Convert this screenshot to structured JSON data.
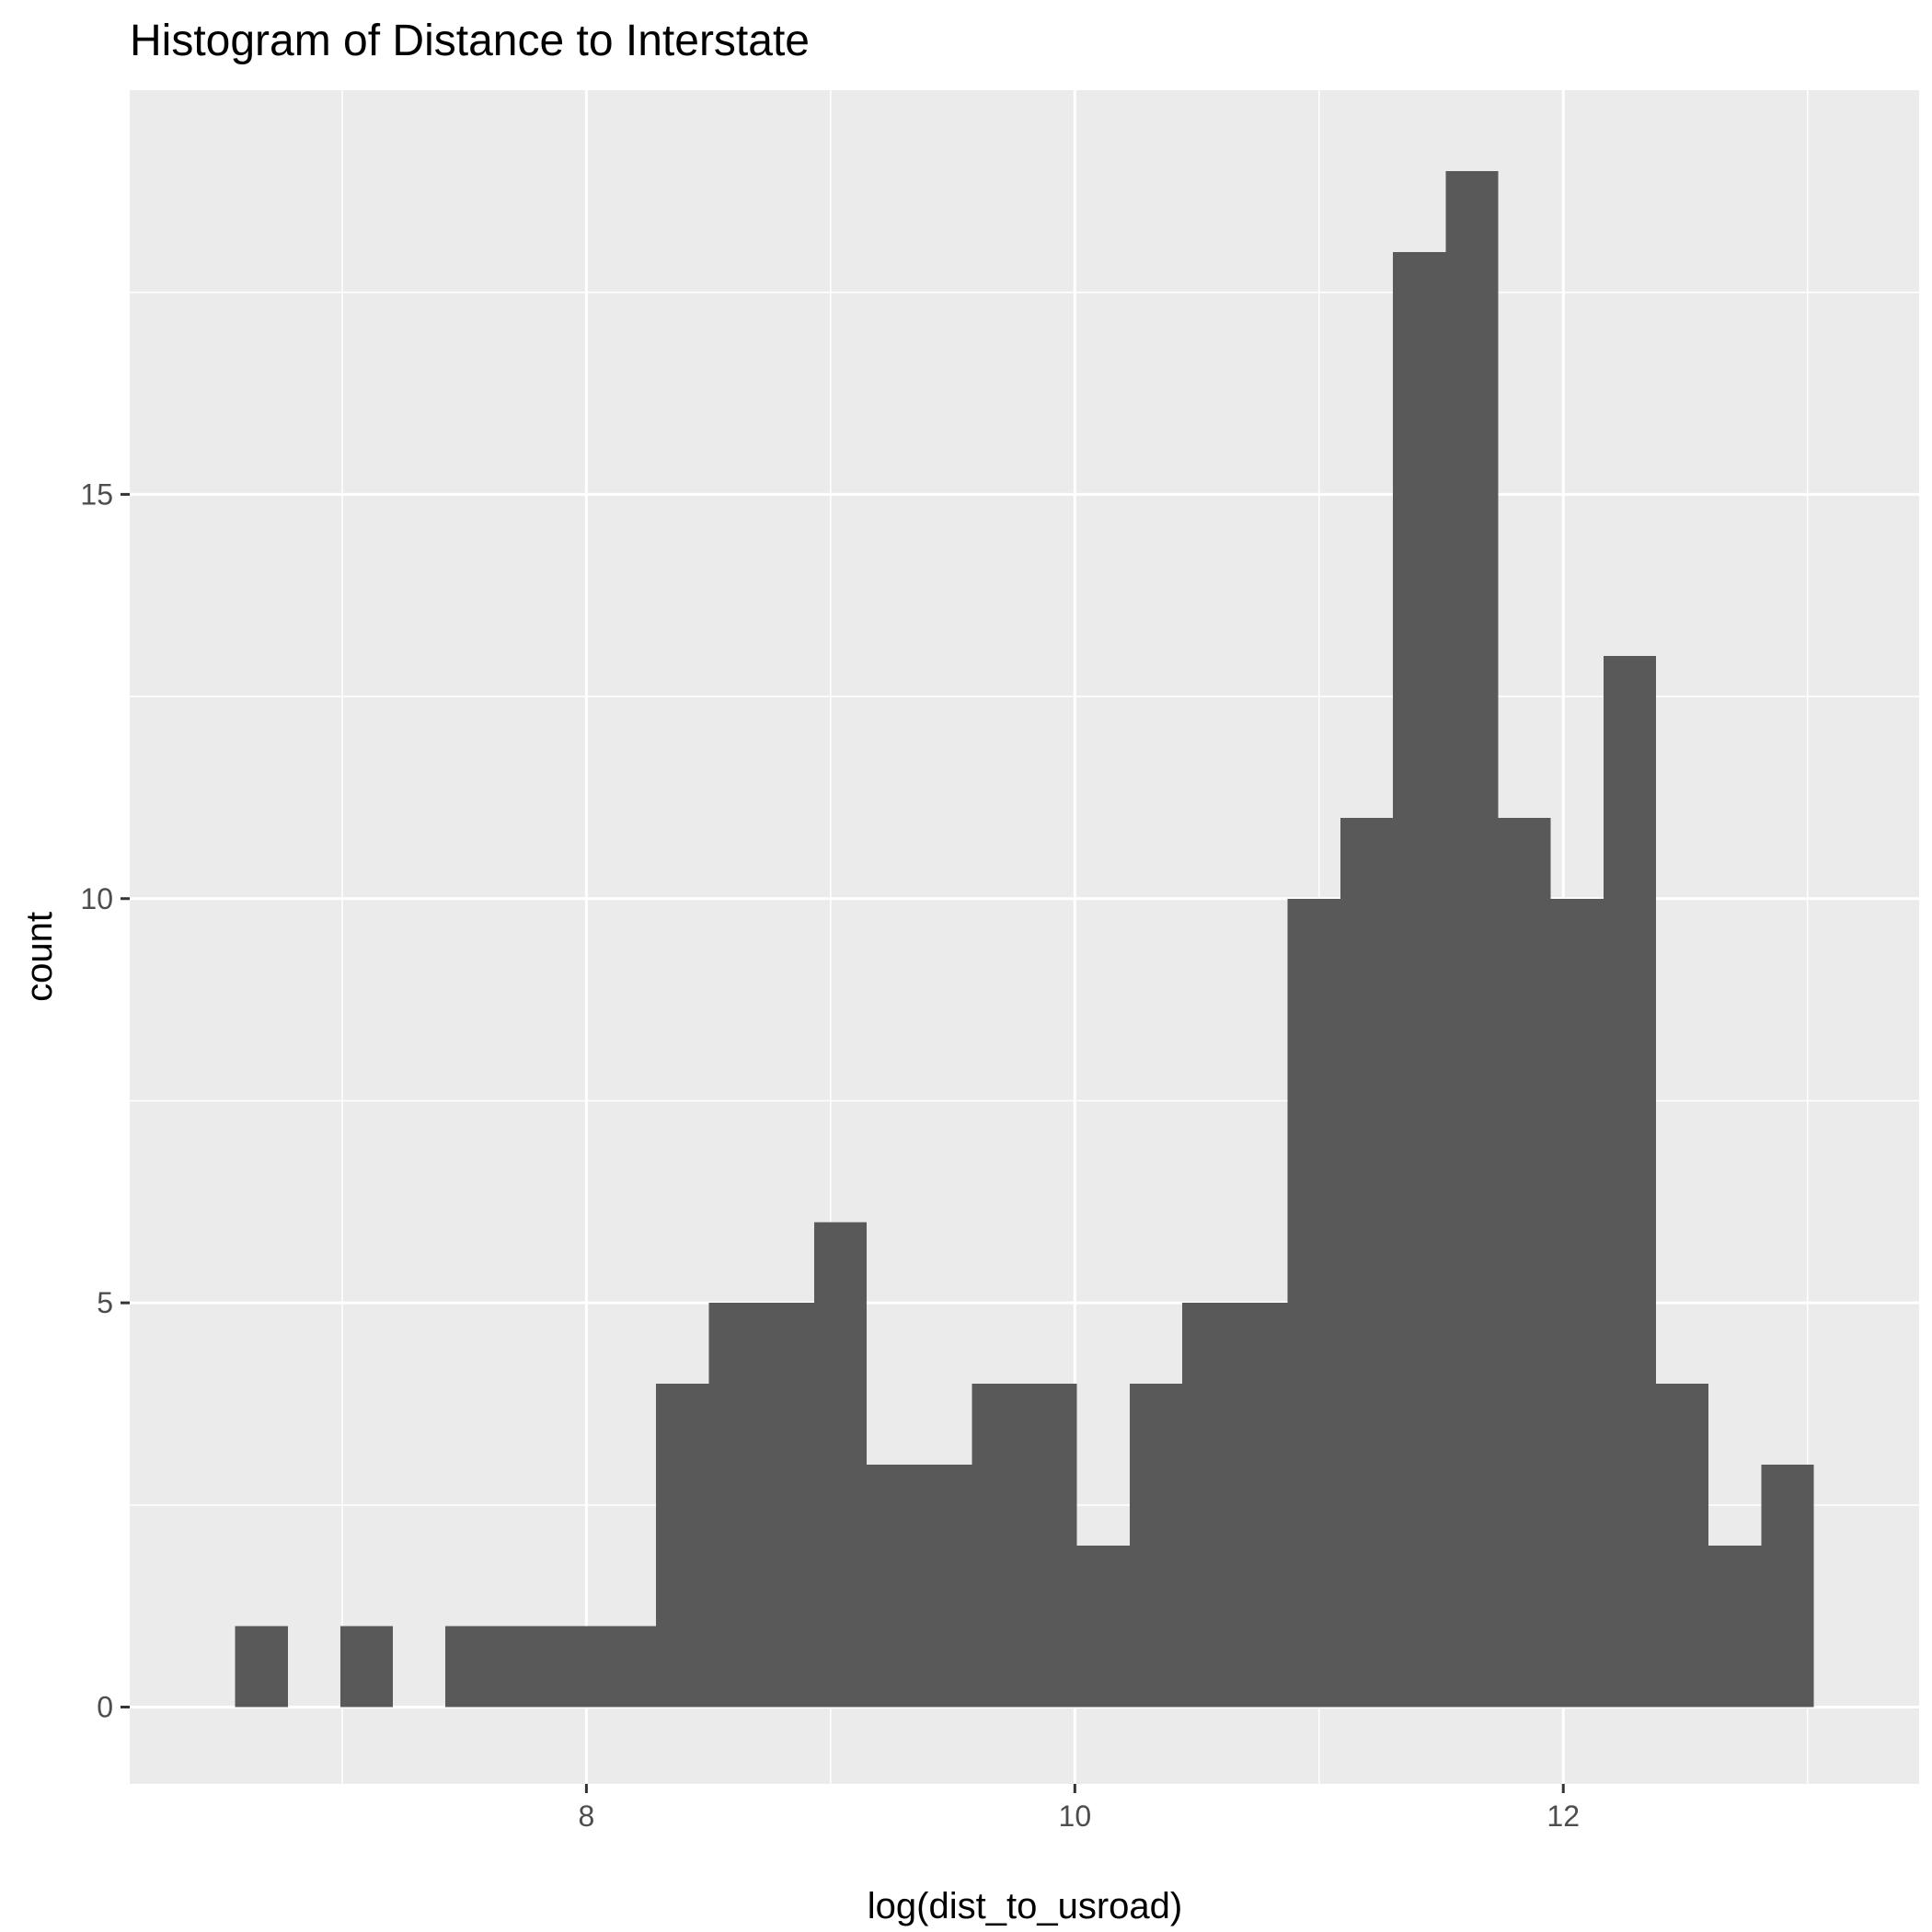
{
  "chart_data": {
    "type": "bar",
    "title": "Histogram of Distance to Interstate",
    "xlabel": "log(dist_to_usroad)",
    "ylabel": "count",
    "bin_width": 0.2155,
    "bins": [
      {
        "x0": 6.561,
        "x1": 6.777,
        "count": 1
      },
      {
        "x0": 6.777,
        "x1": 6.992,
        "count": 0
      },
      {
        "x0": 6.992,
        "x1": 7.208,
        "count": 1
      },
      {
        "x0": 7.208,
        "x1": 7.423,
        "count": 0
      },
      {
        "x0": 7.423,
        "x1": 7.639,
        "count": 1
      },
      {
        "x0": 7.639,
        "x1": 7.854,
        "count": 1
      },
      {
        "x0": 7.854,
        "x1": 8.07,
        "count": 1
      },
      {
        "x0": 8.07,
        "x1": 8.285,
        "count": 1
      },
      {
        "x0": 8.285,
        "x1": 8.501,
        "count": 4
      },
      {
        "x0": 8.501,
        "x1": 8.716,
        "count": 5
      },
      {
        "x0": 8.716,
        "x1": 8.932,
        "count": 5
      },
      {
        "x0": 8.932,
        "x1": 9.147,
        "count": 6
      },
      {
        "x0": 9.147,
        "x1": 9.363,
        "count": 3
      },
      {
        "x0": 9.363,
        "x1": 9.578,
        "count": 3
      },
      {
        "x0": 9.578,
        "x1": 9.794,
        "count": 4
      },
      {
        "x0": 9.794,
        "x1": 10.009,
        "count": 4
      },
      {
        "x0": 10.009,
        "x1": 10.225,
        "count": 2
      },
      {
        "x0": 10.225,
        "x1": 10.44,
        "count": 4
      },
      {
        "x0": 10.44,
        "x1": 10.656,
        "count": 5
      },
      {
        "x0": 10.656,
        "x1": 10.871,
        "count": 5
      },
      {
        "x0": 10.871,
        "x1": 11.087,
        "count": 10
      },
      {
        "x0": 11.087,
        "x1": 11.302,
        "count": 11
      },
      {
        "x0": 11.302,
        "x1": 11.518,
        "count": 18
      },
      {
        "x0": 11.518,
        "x1": 11.733,
        "count": 19
      },
      {
        "x0": 11.733,
        "x1": 11.949,
        "count": 11
      },
      {
        "x0": 11.949,
        "x1": 12.164,
        "count": 10
      },
      {
        "x0": 12.164,
        "x1": 12.38,
        "count": 13
      },
      {
        "x0": 12.38,
        "x1": 12.595,
        "count": 4
      },
      {
        "x0": 12.595,
        "x1": 12.811,
        "count": 2
      },
      {
        "x0": 12.811,
        "x1": 13.026,
        "count": 3
      }
    ],
    "xlim": [
      6.13,
      13.457
    ],
    "ylim": [
      -0.95,
      20.0
    ],
    "x_ticks": [
      8,
      10,
      12
    ],
    "x_tick_labels": [
      "8",
      "10",
      "12"
    ],
    "x_minor_ticks": [
      7,
      9,
      11,
      13
    ],
    "y_ticks": [
      0,
      5,
      10,
      15
    ],
    "y_tick_labels": [
      "0",
      "5",
      "10",
      "15"
    ],
    "y_minor_ticks": [
      2.5,
      7.5,
      12.5,
      17.5
    ],
    "grid": true,
    "legend": "none",
    "colors": {
      "bar": "#595959",
      "panel": "#ebebeb",
      "grid": "#ffffff",
      "tick": "#333333",
      "tick_label": "#4d4d4d"
    }
  }
}
